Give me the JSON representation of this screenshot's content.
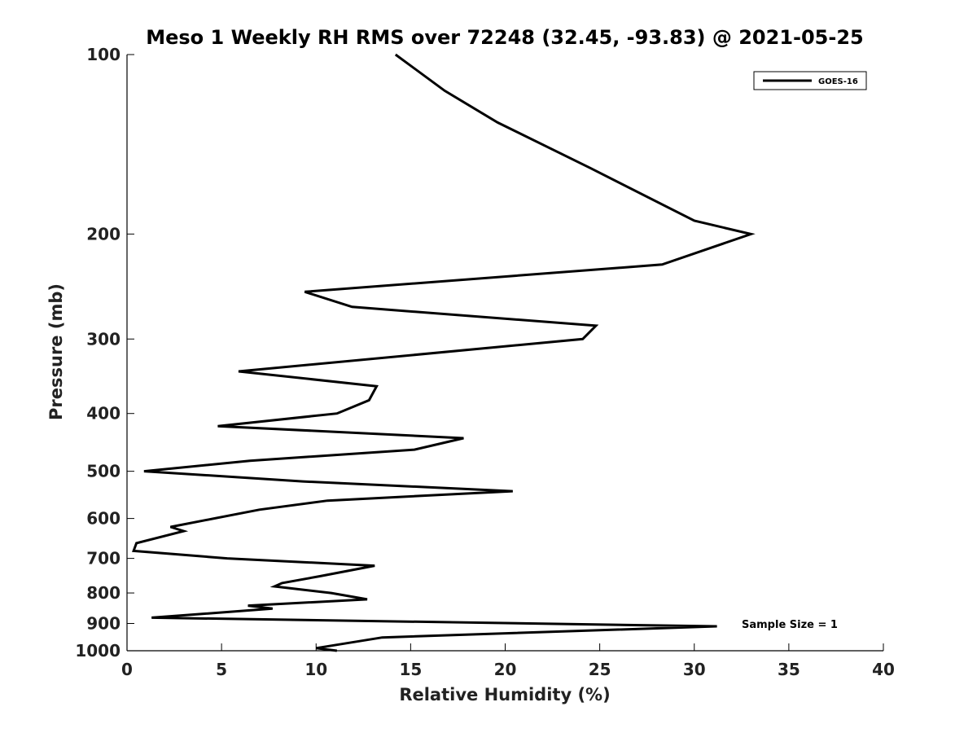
{
  "chart_data": {
    "type": "line",
    "title": "Meso 1 Weekly RH RMS over 72248 (32.45, -93.83) @ 2021-05-25",
    "xlabel": "Relative Humidity (%)",
    "ylabel": "Pressure (mb)",
    "xlim": [
      0,
      40
    ],
    "ylim": [
      100,
      1000
    ],
    "y_scale": "log",
    "y_inverted": true,
    "x_ticks": [
      0,
      5,
      10,
      15,
      20,
      25,
      30,
      35,
      40
    ],
    "x_tick_labels": [
      "0",
      "5",
      "10",
      "15",
      "20",
      "25",
      "30",
      "35",
      "40"
    ],
    "y_ticks": [
      100,
      200,
      300,
      400,
      500,
      600,
      700,
      800,
      900,
      1000
    ],
    "y_tick_labels": [
      "100",
      "200",
      "300",
      "400",
      "500",
      "600",
      "700",
      "800",
      "900",
      "1000"
    ],
    "grid": false,
    "legend_position": "top-right",
    "annotation": "Sample Size = 1",
    "series": [
      {
        "name": "GOES-16",
        "color": "#000000",
        "x": [
          14.2,
          16.8,
          19.6,
          24.5,
          30.0,
          33.0,
          28.3,
          9.4,
          11.9,
          24.8,
          24.1,
          5.9,
          13.2,
          12.8,
          11.1,
          4.8,
          17.8,
          15.2,
          6.5,
          0.9,
          9.3,
          20.4,
          10.6,
          7.0,
          2.3,
          3.0,
          0.5,
          0.35,
          5.3,
          13.1,
          10.2,
          8.2,
          7.8,
          10.8,
          12.7,
          6.4,
          7.7,
          1.3,
          31.2,
          13.5,
          10.0,
          11.1
        ],
        "y": [
          100,
          115,
          130,
          155,
          190,
          200,
          225,
          250,
          265,
          285,
          300,
          340,
          360,
          380,
          400,
          420,
          440,
          460,
          480,
          500,
          520,
          540,
          560,
          580,
          620,
          630,
          660,
          680,
          700,
          720,
          750,
          770,
          780,
          800,
          820,
          840,
          850,
          880,
          910,
          950,
          990,
          1000
        ]
      }
    ]
  }
}
